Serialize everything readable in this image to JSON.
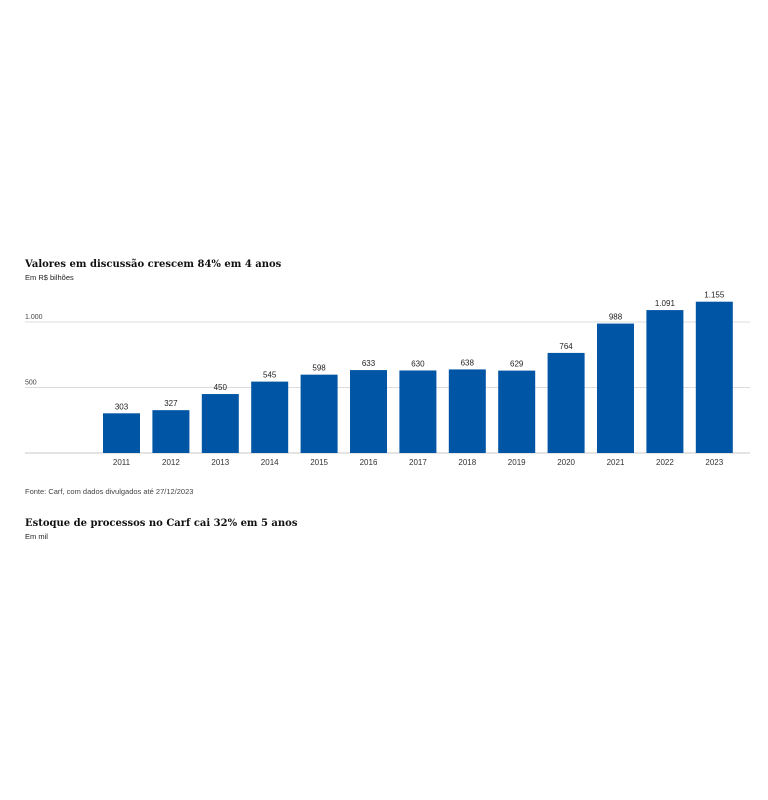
{
  "chart1": {
    "title": "Valores em discussão crescem 84% em 4 anos",
    "subtitle": "Em R$ bilhões",
    "source": "Fonte: Carf, com dados divulgados até 27/12/2023"
  },
  "chart2": {
    "title": "Estoque de processos no Carf cai 32% em 5 anos",
    "subtitle": "Em mil"
  },
  "chart_data": {
    "type": "bar",
    "title": "Valores em discussão crescem 84% em 4 anos",
    "subtitle": "Em R$ bilhões",
    "categories": [
      "2011",
      "2012",
      "2013",
      "2014",
      "2015",
      "2016",
      "2017",
      "2018",
      "2019",
      "2020",
      "2021",
      "2022",
      "2023"
    ],
    "values": [
      303,
      327,
      450,
      545,
      598,
      633,
      630,
      638,
      629,
      764,
      988,
      1091,
      1155
    ],
    "value_labels": [
      "303",
      "327",
      "450",
      "545",
      "598",
      "633",
      "630",
      "638",
      "629",
      "764",
      "988",
      "1.091",
      "1.155"
    ],
    "y_ticks": [
      500,
      1000
    ],
    "y_tick_labels": [
      "500",
      "1.000"
    ],
    "ylim": [
      0,
      1000
    ],
    "grid": true,
    "bar_color": "#0055a5",
    "xlabel": "",
    "ylabel": ""
  }
}
